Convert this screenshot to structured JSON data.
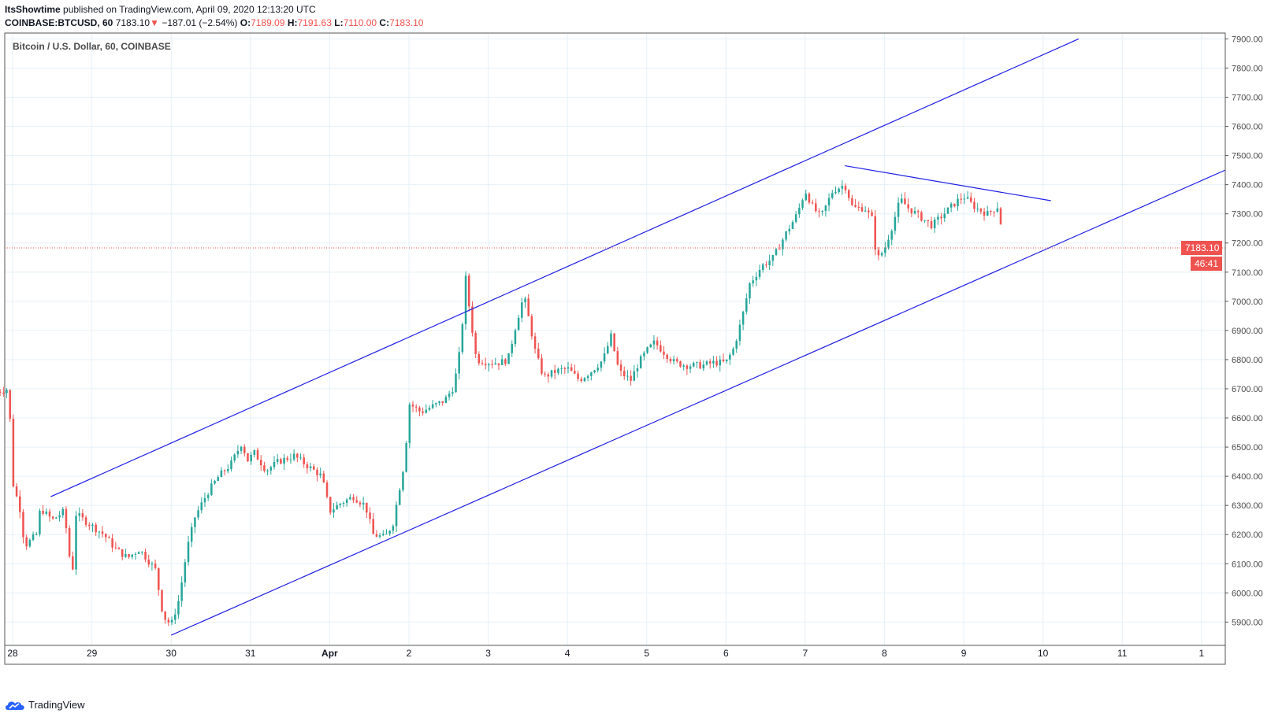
{
  "header": {
    "author": "ItsShowtime",
    "published_text": "published on TradingView.com, April 09, 2020 12:13:20 UTC",
    "symbol": "COINBASE:BTCUSD, 60",
    "last": "7183.10",
    "change": "−187.01 (−2.54%)",
    "o_label": "O:",
    "o_val": "7189.09",
    "h_label": "H:",
    "h_val": "7191.63",
    "l_label": "L:",
    "l_val": "7110.00",
    "c_label": "C:",
    "c_val": "7183.10",
    "down_arrow": "▼"
  },
  "legend_title": "Bitcoin / U.S. Dollar, 60, COINBASE",
  "price_marker": {
    "price": 7183.1,
    "label": "7183.10",
    "countdown": "46:41"
  },
  "footer": {
    "brand": "TradingView",
    "icon": "tradingview-cloud-icon"
  },
  "colors": {
    "up": "#26a69a",
    "down": "#ef5350",
    "trendline": "#1e1ee6",
    "grid": "#e6f0f7"
  },
  "chart_data": {
    "type": "candlestick",
    "title": "Bitcoin / U.S. Dollar, 60, COINBASE",
    "ylim": [
      5820,
      7920
    ],
    "y_ticks": [
      5900,
      6000,
      6100,
      6200,
      6300,
      6400,
      6500,
      6600,
      6700,
      6800,
      6900,
      7000,
      7100,
      7200,
      7300,
      7400,
      7500,
      7600,
      7700,
      7800,
      7900
    ],
    "x_domain_days": [
      -0.1,
      15.3
    ],
    "x_ticks": [
      {
        "label": "28",
        "day": 0
      },
      {
        "label": "29",
        "day": 1
      },
      {
        "label": "30",
        "day": 2
      },
      {
        "label": "31",
        "day": 3
      },
      {
        "label": "Apr",
        "day": 4
      },
      {
        "label": "2",
        "day": 5
      },
      {
        "label": "3",
        "day": 6
      },
      {
        "label": "4",
        "day": 7
      },
      {
        "label": "5",
        "day": 8
      },
      {
        "label": "6",
        "day": 9
      },
      {
        "label": "7",
        "day": 10
      },
      {
        "label": "8",
        "day": 11
      },
      {
        "label": "9",
        "day": 12
      },
      {
        "label": "10",
        "day": 13
      },
      {
        "label": "11",
        "day": 14
      },
      {
        "label": "1",
        "day": 15
      }
    ],
    "price_path": [
      [
        -0.2,
        6690
      ],
      [
        -0.05,
        6700
      ],
      [
        0.0,
        6380
      ],
      [
        0.1,
        6280
      ],
      [
        0.15,
        6160
      ],
      [
        0.3,
        6200
      ],
      [
        0.35,
        6290
      ],
      [
        0.5,
        6250
      ],
      [
        0.65,
        6280
      ],
      [
        0.75,
        6050
      ],
      [
        0.8,
        6270
      ],
      [
        1.0,
        6230
      ],
      [
        1.15,
        6200
      ],
      [
        1.3,
        6150
      ],
      [
        1.45,
        6120
      ],
      [
        1.6,
        6150
      ],
      [
        1.8,
        6080
      ],
      [
        1.9,
        5920
      ],
      [
        2.0,
        5890
      ],
      [
        2.1,
        5980
      ],
      [
        2.2,
        6150
      ],
      [
        2.3,
        6260
      ],
      [
        2.45,
        6340
      ],
      [
        2.6,
        6400
      ],
      [
        2.75,
        6440
      ],
      [
        2.9,
        6520
      ],
      [
        2.95,
        6450
      ],
      [
        3.05,
        6480
      ],
      [
        3.2,
        6420
      ],
      [
        3.35,
        6450
      ],
      [
        3.55,
        6470
      ],
      [
        3.7,
        6440
      ],
      [
        3.9,
        6400
      ],
      [
        4.0,
        6280
      ],
      [
        4.15,
        6310
      ],
      [
        4.3,
        6330
      ],
      [
        4.45,
        6300
      ],
      [
        4.55,
        6200
      ],
      [
        4.7,
        6190
      ],
      [
        4.8,
        6240
      ],
      [
        4.95,
        6460
      ],
      [
        5.0,
        6650
      ],
      [
        5.15,
        6620
      ],
      [
        5.3,
        6640
      ],
      [
        5.45,
        6660
      ],
      [
        5.55,
        6700
      ],
      [
        5.62,
        6780
      ],
      [
        5.67,
        6910
      ],
      [
        5.72,
        7090
      ],
      [
        5.76,
        6980
      ],
      [
        5.85,
        6800
      ],
      [
        6.0,
        6790
      ],
      [
        6.15,
        6790
      ],
      [
        6.25,
        6800
      ],
      [
        6.35,
        6920
      ],
      [
        6.45,
        7020
      ],
      [
        6.52,
        6930
      ],
      [
        6.6,
        6820
      ],
      [
        6.7,
        6740
      ],
      [
        6.85,
        6760
      ],
      [
        7.0,
        6770
      ],
      [
        7.15,
        6730
      ],
      [
        7.3,
        6760
      ],
      [
        7.45,
        6800
      ],
      [
        7.55,
        6880
      ],
      [
        7.65,
        6760
      ],
      [
        7.8,
        6730
      ],
      [
        7.9,
        6790
      ],
      [
        8.0,
        6830
      ],
      [
        8.1,
        6860
      ],
      [
        8.2,
        6830
      ],
      [
        8.35,
        6790
      ],
      [
        8.5,
        6780
      ],
      [
        8.7,
        6780
      ],
      [
        8.85,
        6790
      ],
      [
        9.0,
        6790
      ],
      [
        9.1,
        6840
      ],
      [
        9.2,
        6940
      ],
      [
        9.3,
        7060
      ],
      [
        9.45,
        7120
      ],
      [
        9.6,
        7150
      ],
      [
        9.75,
        7230
      ],
      [
        9.9,
        7300
      ],
      [
        10.0,
        7380
      ],
      [
        10.1,
        7320
      ],
      [
        10.2,
        7290
      ],
      [
        10.35,
        7380
      ],
      [
        10.5,
        7400
      ],
      [
        10.6,
        7320
      ],
      [
        10.75,
        7320
      ],
      [
        10.85,
        7280
      ],
      [
        10.9,
        7140
      ],
      [
        11.0,
        7180
      ],
      [
        11.1,
        7260
      ],
      [
        11.2,
        7350
      ],
      [
        11.3,
        7320
      ],
      [
        11.45,
        7290
      ],
      [
        11.6,
        7260
      ],
      [
        11.75,
        7300
      ],
      [
        11.9,
        7340
      ],
      [
        12.0,
        7360
      ],
      [
        12.15,
        7320
      ],
      [
        12.3,
        7300
      ],
      [
        12.45,
        7330
      ],
      [
        12.45,
        7310
      ],
      [
        12.5,
        7185
      ]
    ],
    "trendlines": [
      {
        "name": "upper-channel",
        "points": [
          [
            0.48,
            6330
          ],
          [
            13.45,
            7900
          ]
        ]
      },
      {
        "name": "lower-channel",
        "points": [
          [
            2.0,
            5855
          ],
          [
            15.3,
            7450
          ]
        ]
      },
      {
        "name": "descending-resistance",
        "points": [
          [
            10.5,
            7465
          ],
          [
            13.1,
            7345
          ]
        ]
      }
    ]
  }
}
